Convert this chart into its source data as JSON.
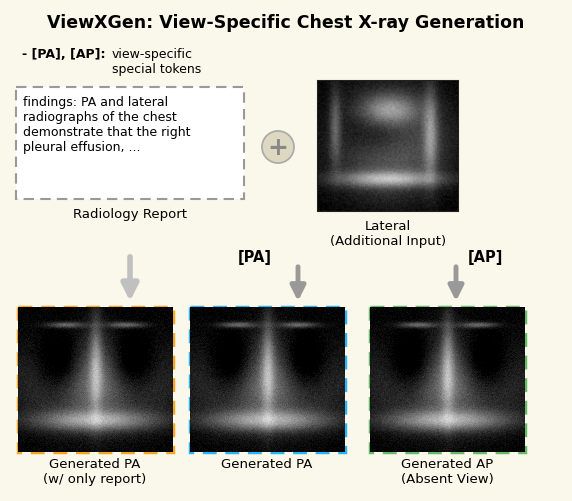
{
  "title": "ViewXGen: View-Specific Chest X-ray Generation",
  "bg_color": "#faf8ea",
  "panel_bg": "#faf8ea",
  "title_fontsize": 12.5,
  "bullet_text": "- [PA], [AP]:",
  "bullet_desc": "view-specific\nspecial tokens",
  "report_text": "findings: PA and lateral\nradiographs of the chest\ndemonstrate that the right\npleural effusion, ...",
  "report_label": "Radiology Report",
  "lateral_label": "Lateral\n(Additional Input)",
  "labels_bottom": [
    "Generated PA\n(w/ only report)",
    "Generated PA",
    "Generated AP\n(Absent View)"
  ],
  "token_labels": [
    "[PA]",
    "[AP]"
  ],
  "border_colors": [
    "#f5a623",
    "#29b6f6",
    "#66bb6a"
  ],
  "dashed_report_color": "#999999",
  "arrow_color": "#bbbbbb",
  "arrow_color_tok": "#999999"
}
